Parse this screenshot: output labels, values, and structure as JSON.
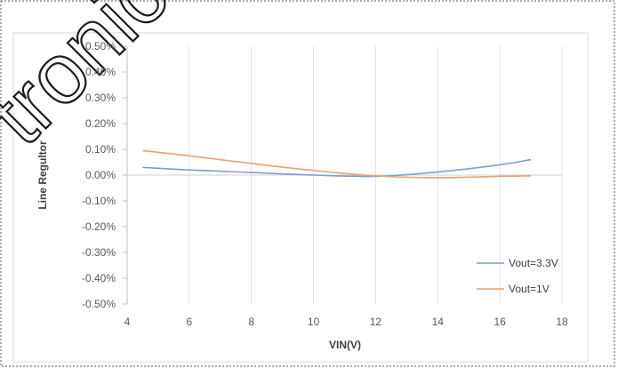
{
  "watermark": {
    "text": "tronics"
  },
  "chart_data": {
    "type": "line",
    "title": "",
    "xlabel": "VIN(V)",
    "ylabel": "Line Regultor",
    "xlim": [
      4,
      18
    ],
    "ylim": [
      -0.5,
      0.5
    ],
    "y_unit": "%",
    "xticks": [
      "4",
      "6",
      "8",
      "10",
      "12",
      "14",
      "16",
      "18"
    ],
    "yticks": [
      "0.50%",
      "0.40%",
      "0.30%",
      "0.20%",
      "0.10%",
      "0.00%",
      "-0.10%",
      "-0.20%",
      "-0.30%",
      "-0.40%",
      "-0.50%"
    ],
    "grid": "vertical",
    "legend_position": "bottom-right",
    "series": [
      {
        "name": "Vout=3.3V",
        "color": "#7f9fc8",
        "x": [
          4.5,
          6,
          8,
          10,
          12,
          14,
          16,
          17
        ],
        "y": [
          0.03,
          0.02,
          0.01,
          0.0,
          -0.005,
          0.012,
          0.04,
          0.06
        ]
      },
      {
        "name": "Vout=1V",
        "color": "#e8a072",
        "x": [
          4.5,
          6,
          8,
          10,
          12,
          14,
          16,
          17
        ],
        "y": [
          0.095,
          0.075,
          0.045,
          0.018,
          -0.003,
          -0.01,
          -0.005,
          -0.003
        ]
      }
    ]
  }
}
